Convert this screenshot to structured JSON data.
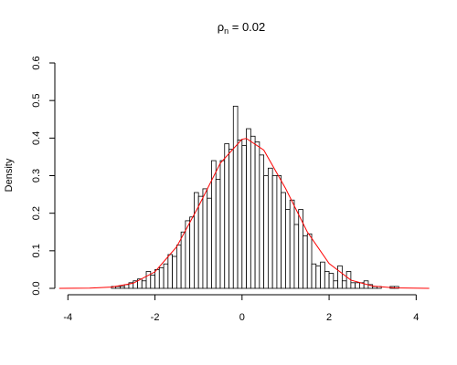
{
  "chart_data": {
    "type": "histogram",
    "title": {
      "symbol": "ρ",
      "subscript": "n",
      "rest": " = 0.02"
    },
    "y_label": "Density",
    "bins": [
      -3.0,
      -2.9,
      -2.8,
      -2.7,
      -2.6,
      -2.5,
      -2.4,
      -2.3,
      -2.2,
      -2.1,
      -2.0,
      -1.9,
      -1.8,
      -1.7,
      -1.6,
      -1.5,
      -1.4,
      -1.3,
      -1.2,
      -1.1,
      -1.0,
      -0.9,
      -0.8,
      -0.7,
      -0.6,
      -0.5,
      -0.4,
      -0.3,
      -0.2,
      -0.1,
      0.0,
      0.1,
      0.2,
      0.3,
      0.4,
      0.5,
      0.6,
      0.7,
      0.8,
      0.9,
      1.0,
      1.1,
      1.2,
      1.3,
      1.4,
      1.5,
      1.6,
      1.7,
      1.8,
      1.9,
      2.0,
      2.1,
      2.2,
      2.3,
      2.4,
      2.5,
      2.6,
      2.7,
      2.8,
      2.9,
      3.0,
      3.1,
      3.2,
      3.3,
      3.4,
      3.5,
      3.6
    ],
    "values": [
      0.005,
      0.005,
      0.005,
      0.01,
      0.015,
      0.02,
      0.025,
      0.02,
      0.045,
      0.035,
      0.05,
      0.055,
      0.065,
      0.09,
      0.085,
      0.115,
      0.15,
      0.18,
      0.19,
      0.255,
      0.245,
      0.265,
      0.24,
      0.34,
      0.29,
      0.34,
      0.385,
      0.37,
      0.485,
      0.395,
      0.38,
      0.425,
      0.405,
      0.39,
      0.355,
      0.3,
      0.32,
      0.3,
      0.3,
      0.255,
      0.21,
      0.235,
      0.17,
      0.21,
      0.14,
      0.145,
      0.065,
      0.06,
      0.07,
      0.045,
      0.04,
      0.02,
      0.06,
      0.02,
      0.045,
      0.015,
      0.015,
      0.015,
      0.02,
      0.01,
      0.005,
      0.005,
      0,
      0,
      0.005,
      0.005
    ],
    "bar_color": "#ffffff",
    "edge_color": "#000000",
    "density": {
      "color": "#ff0000",
      "x": [
        -4.2,
        -3.5,
        -3,
        -2.5,
        -2,
        -1.5,
        -1,
        -0.5,
        0,
        0.1,
        0.5,
        1,
        1.5,
        2,
        2.5,
        3,
        3.5,
        4.3
      ],
      "values": [
        0,
        0.0006,
        0.0033,
        0.0136,
        0.044,
        0.111,
        0.218,
        0.333,
        0.397,
        0.399,
        0.368,
        0.266,
        0.15,
        0.066,
        0.022,
        0.006,
        0.0012,
        0
      ]
    },
    "xlim": [
      -4.3,
      4.35
    ],
    "ylim": [
      0,
      0.6
    ],
    "xticks": [
      -4,
      -2,
      0,
      2,
      4
    ],
    "yticks": [
      {
        "value": 0,
        "label": "0.0"
      },
      0.1,
      0.2,
      0.3,
      0.4,
      0.5,
      0.6
    ]
  }
}
